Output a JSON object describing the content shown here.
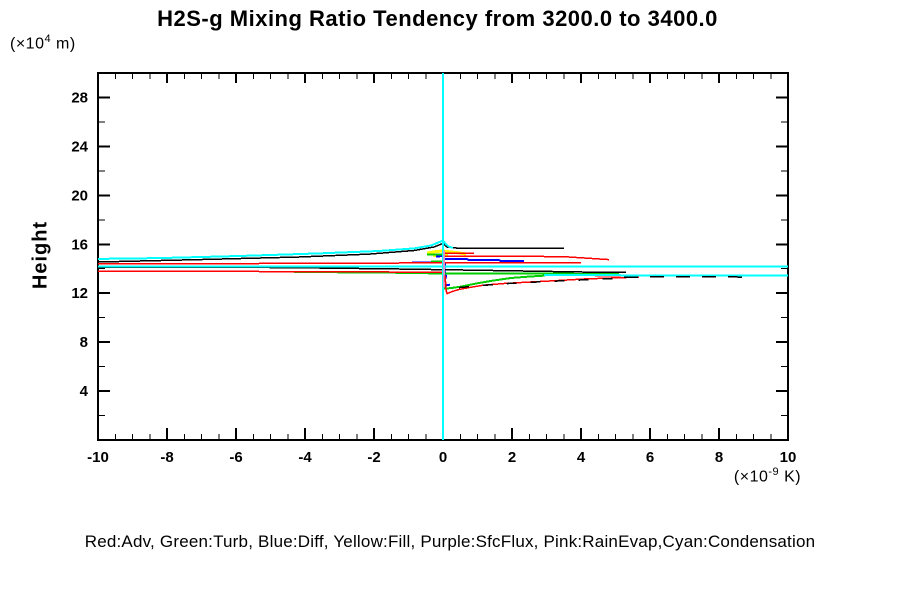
{
  "title": "H2S-g Mixing Ratio Tendency from 3200.0 to 3400.0",
  "y_axis": {
    "label": "Height",
    "unit_base": "(×10",
    "unit_exp": "4",
    "unit_rest": " m)",
    "ticks": [
      4,
      8,
      12,
      16,
      20,
      24,
      28
    ],
    "minor_step": 2,
    "lim": [
      0,
      30
    ]
  },
  "x_axis": {
    "unit_base": "(×10",
    "unit_exp": "-9",
    "unit_rest": " K)",
    "ticks": [
      -10,
      -8,
      -6,
      -4,
      -2,
      0,
      2,
      4,
      6,
      8,
      10
    ],
    "minor_step": 0.5,
    "lim": [
      -10,
      10
    ]
  },
  "legend": {
    "text": "Red:Adv, Green:Turb, Blue:Diff, Yellow:Fill, Purple:SfcFlux, Pink:RainEvap,Cyan:Condensation",
    "entries": [
      {
        "color": "Red",
        "hex": "#ff0000",
        "process": "Adv"
      },
      {
        "color": "Green",
        "hex": "#00cc00",
        "process": "Turb"
      },
      {
        "color": "Blue",
        "hex": "#0000ff",
        "process": "Diff"
      },
      {
        "color": "Yellow",
        "hex": "#ffff00",
        "process": "Fill"
      },
      {
        "color": "Purple",
        "hex": "#cc99cc",
        "process": "SfcFlux"
      },
      {
        "color": "Pink",
        "hex": "#ff9ecb",
        "process": "RainEvap"
      },
      {
        "color": "Cyan",
        "hex": "#00ffff",
        "process": "Condensation"
      }
    ]
  },
  "chart_data": {
    "type": "line",
    "axis_color": "#000000",
    "x_units_note": "tendency in 1e-9 K, height in 1e4 m",
    "series": [
      {
        "name": "fill-yellow-peak",
        "hex": "#ffff00",
        "width": 3,
        "points": [
          [
            -0.46,
            15.29
          ],
          [
            -0.2,
            15.41
          ],
          [
            0,
            15.45
          ],
          [
            0.23,
            15.37
          ],
          [
            0.49,
            15.29
          ],
          [
            0.67,
            15.2
          ]
        ]
      },
      {
        "name": "fill-yellow-bar",
        "hex": "#ffff00",
        "width": 3,
        "points": [
          [
            -0.29,
            15.08
          ],
          [
            0.14,
            15.08
          ]
        ]
      },
      {
        "name": "diff-blue-left",
        "hex": "#0000ff",
        "width": 2,
        "points": [
          [
            -0.9,
            14.51
          ],
          [
            -0.03,
            14.51
          ]
        ]
      },
      {
        "name": "diff-blue-right-steps",
        "hex": "#0000ff",
        "width": 2,
        "points": [
          [
            0.03,
            14.79
          ],
          [
            0.7,
            14.79
          ],
          [
            0.75,
            14.71
          ],
          [
            1.62,
            14.71
          ],
          [
            1.68,
            14.63
          ],
          [
            2.35,
            14.63
          ]
        ]
      },
      {
        "name": "diff-blue-upper",
        "hex": "#0000ff",
        "width": 2,
        "points": [
          [
            -0.2,
            15.0
          ],
          [
            0.03,
            15.04
          ]
        ]
      },
      {
        "name": "diff-blue-dip",
        "hex": "#0000ff",
        "width": 2,
        "points": [
          [
            0.06,
            14.43
          ],
          [
            0.04,
            13.85
          ],
          [
            0.09,
            13.36
          ],
          [
            0.04,
            13.03
          ],
          [
            0.06,
            12.62
          ],
          [
            0.2,
            12.7
          ]
        ]
      },
      {
        "name": "diff-blue-lower-right",
        "hex": "#0000ff",
        "width": 2,
        "points": [
          [
            4.32,
            13.61
          ],
          [
            4.9,
            13.61
          ]
        ]
      },
      {
        "name": "turb-green-mid",
        "hex": "#00cc00",
        "width": 2,
        "points": [
          [
            -4.32,
            13.73
          ],
          [
            -1.86,
            13.69
          ],
          [
            0.03,
            13.61
          ],
          [
            2.49,
            13.61
          ],
          [
            5.1,
            13.57
          ]
        ]
      },
      {
        "name": "turb-green-dip",
        "hex": "#00cc00",
        "width": 2,
        "points": [
          [
            0.06,
            13.44
          ],
          [
            0.06,
            12.38
          ],
          [
            0.23,
            12.42
          ],
          [
            0.52,
            12.54
          ],
          [
            0.96,
            12.79
          ],
          [
            1.45,
            13.03
          ],
          [
            1.97,
            13.24
          ],
          [
            2.49,
            13.36
          ],
          [
            2.96,
            13.44
          ]
        ]
      },
      {
        "name": "turb-green-upper",
        "hex": "#00cc00",
        "width": 2,
        "points": [
          [
            -0.46,
            15.16
          ],
          [
            0,
            15.16
          ]
        ]
      },
      {
        "name": "turb-green-upper2",
        "hex": "#00cc00",
        "width": 2,
        "points": [
          [
            -0.35,
            14.59
          ],
          [
            0,
            14.59
          ]
        ]
      },
      {
        "name": "adv-red-left-upper",
        "hex": "#ff0000",
        "width": 1.5,
        "points": [
          [
            -10,
            14.39
          ],
          [
            -5.33,
            14.43
          ],
          [
            -1.28,
            14.47
          ],
          [
            1.62,
            14.51
          ],
          [
            4,
            14.51
          ]
        ]
      },
      {
        "name": "adv-red-left-lower",
        "hex": "#ff0000",
        "width": 1.5,
        "points": [
          [
            -10,
            13.81
          ],
          [
            -5.33,
            13.77
          ],
          [
            -1.57,
            13.73
          ],
          [
            -0.03,
            13.69
          ]
        ]
      },
      {
        "name": "adv-red-upper-short",
        "hex": "#ff0000",
        "width": 1.5,
        "points": [
          [
            0.03,
            15.25
          ],
          [
            0.9,
            15.25
          ]
        ]
      },
      {
        "name": "adv-red-upper-long",
        "hex": "#ff0000",
        "width": 1.5,
        "points": [
          [
            -0.03,
            15.04
          ],
          [
            2.2,
            15.04
          ],
          [
            3.65,
            14.96
          ],
          [
            4.81,
            14.75
          ]
        ]
      },
      {
        "name": "adv-red-mid-right",
        "hex": "#ff0000",
        "width": 1.5,
        "points": [
          [
            4.41,
            13.44
          ],
          [
            5.16,
            13.44
          ]
        ]
      },
      {
        "name": "total-black-peak",
        "hex": "#000000",
        "width": 1.5,
        "points": [
          [
            -10,
            14.55
          ],
          [
            -7.07,
            14.75
          ],
          [
            -4.17,
            14.96
          ],
          [
            -2.14,
            15.2
          ],
          [
            -0.84,
            15.49
          ],
          [
            -0.26,
            15.78
          ],
          [
            0,
            16.07
          ],
          [
            0.12,
            15.78
          ],
          [
            0.46,
            15.67
          ],
          [
            2.2,
            15.66
          ],
          [
            3.51,
            15.66
          ]
        ]
      },
      {
        "name": "total-black-mid",
        "hex": "#000000",
        "width": 1.5,
        "points": [
          [
            -10,
            14.1
          ],
          [
            -6.49,
            14.14
          ],
          [
            -3.59,
            14.06
          ],
          [
            -1.28,
            13.98
          ],
          [
            0.75,
            13.89
          ],
          [
            2.49,
            13.81
          ],
          [
            4.03,
            13.73
          ],
          [
            5.3,
            13.69
          ]
        ]
      },
      {
        "name": "condensation-cyan-peak",
        "hex": "#00ffff",
        "width": 2,
        "points": [
          [
            -10,
            14.8
          ],
          [
            -8.23,
            14.87
          ],
          [
            -5.91,
            15.04
          ],
          [
            -3.59,
            15.25
          ],
          [
            -1.86,
            15.45
          ],
          [
            -0.84,
            15.66
          ],
          [
            -0.35,
            15.9
          ],
          [
            0,
            16.3
          ],
          [
            0.09,
            16.0
          ],
          [
            0.17,
            15.8
          ],
          [
            0.29,
            15.7
          ]
        ]
      },
      {
        "name": "condensation-cyan-main",
        "hex": "#00ffff",
        "width": 2,
        "points": [
          [
            -10,
            14.2
          ],
          [
            10,
            14.2
          ]
        ]
      },
      {
        "name": "condensation-cyan-return",
        "hex": "#00ffff",
        "width": 2,
        "points": [
          [
            2.93,
            13.48
          ],
          [
            10,
            13.44
          ]
        ]
      },
      {
        "name": "condensation-cyan-vertical",
        "hex": "#00ffff",
        "width": 2,
        "points": [
          [
            0,
            30
          ],
          [
            0,
            0
          ]
        ]
      },
      {
        "name": "sfcflux-rainevap-vertical",
        "hex": "#cc99cc",
        "width": 2,
        "points": [
          [
            0.03,
            15.5
          ],
          [
            0.03,
            12.45
          ]
        ]
      },
      {
        "name": "adv-red-bottom-curve",
        "hex": "#ff0000",
        "width": 1.5,
        "points": [
          [
            0.06,
            13.44
          ],
          [
            0.09,
            12.21
          ],
          [
            0.12,
            11.97
          ],
          [
            0.26,
            12.13
          ],
          [
            0.46,
            12.3
          ],
          [
            0.75,
            12.46
          ],
          [
            1.19,
            12.66
          ],
          [
            1.77,
            12.79
          ],
          [
            2.49,
            12.91
          ],
          [
            3.3,
            13.03
          ],
          [
            4.09,
            13.16
          ],
          [
            4.87,
            13.24
          ],
          [
            5.68,
            13.32
          ]
        ]
      },
      {
        "name": "total-black-bottom-dashes",
        "hex": "#000000",
        "width": 1.5,
        "dash": "10 14",
        "points": [
          [
            0.46,
            12.46
          ],
          [
            1.62,
            12.75
          ],
          [
            2.93,
            12.95
          ],
          [
            4.23,
            13.11
          ],
          [
            5.25,
            13.24
          ]
        ]
      },
      {
        "name": "total-black-right-dashes",
        "hex": "#000000",
        "width": 1.5,
        "dash": "14 12",
        "points": [
          [
            5.25,
            13.32
          ],
          [
            7.42,
            13.36
          ],
          [
            8.81,
            13.32
          ]
        ]
      }
    ]
  }
}
